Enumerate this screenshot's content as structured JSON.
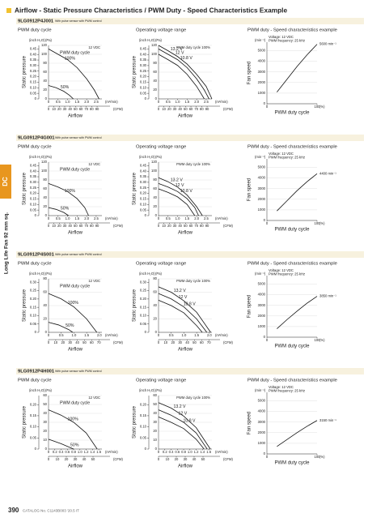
{
  "header": {
    "title": "Airflow - Static Pressure Characteristics / PWM Duty - Speed Characteristics Example"
  },
  "side": {
    "tab": "DC",
    "label": "Long Life Fan 92 mm sq."
  },
  "footer": {
    "page": "390",
    "catalog": "CATALOG No. C1143B003 '20.5 IT"
  },
  "common": {
    "note": "With pulse sensor with PWM control",
    "pq_title": "PWM duty cycle",
    "ov_title": "Operating voltage range",
    "pwm_title": "PWM duty - Speed characteristics example",
    "unit_inch": "(inch H₂O)",
    "unit_pa": "(Pa)",
    "static": "Static pressure",
    "airflow": "Airflow",
    "m3": "(m³/min)",
    "cfm": "(CFM)",
    "cond_pq": "12 VDC",
    "duty": "PWM duty cycle",
    "cond_ov": "PWM duty cycle 100%",
    "unit_rpm": "(min⁻¹)",
    "fan_speed": "Fan speed",
    "pct": "(%)",
    "voltage": "Voltage: 12 VDC",
    "freq": "PWM frequency: 25 kHz"
  },
  "pwm_axes": {
    "ylim": [
      0,
      5800
    ],
    "yticks": [
      0,
      1000,
      2000,
      3000,
      4000,
      5000
    ],
    "xlim": [
      0,
      100
    ],
    "xticks": [
      0,
      100
    ]
  },
  "sections": [
    {
      "model": "9LG0912P4J001",
      "pq": {
        "ylim": [
          0,
          120
        ],
        "yticks": [
          0,
          20,
          40,
          60,
          80,
          100,
          120
        ],
        "y2lim": [
          0,
          0.4817
        ],
        "y2ticks": [
          0,
          0.05,
          {
            "value": 0.1,
            "label": "0.10"
          },
          0.15,
          {
            "value": 0.2,
            "label": "0.20"
          },
          0.25,
          {
            "value": 0.3,
            "label": "0.30"
          },
          0.35,
          {
            "value": 0.4,
            "label": "0.40"
          },
          0.45
        ],
        "xlim": [
          0,
          2.8
        ],
        "xticks": [
          0,
          0.5,
          {
            "value": 1,
            "label": "1.0"
          },
          1.5,
          {
            "value": 2,
            "label": "2.0"
          },
          2.5
        ],
        "x2lim": [
          0,
          98.9
        ],
        "x2ticks": [
          0,
          10,
          20,
          30,
          40,
          50,
          60,
          70,
          80,
          90
        ],
        "series": [
          {
            "name": "100%",
            "x": [
              0,
              0.5,
              1.0,
              1.5,
              2.0,
              2.4,
              2.65
            ],
            "values": [
              112,
              100,
              88,
              70,
              45,
              20,
              0
            ]
          },
          {
            "name": "50%",
            "x": [
              0,
              0.4,
              0.8,
              1.1,
              1.3
            ],
            "values": [
              30,
              25,
              17,
              8,
              0
            ]
          }
        ]
      },
      "ov": {
        "series": [
          {
            "name": "13.2 V",
            "x": [
              0,
              0.5,
              1,
              1.5,
              2,
              2.5,
              2.8
            ],
            "values": [
              120,
              108,
              95,
              78,
              55,
              28,
              0
            ]
          },
          {
            "name": "12 V",
            "x": [
              0,
              0.5,
              1.0,
              1.5,
              2.0,
              2.4,
              2.65
            ],
            "values": [
              112,
              100,
              88,
              70,
              45,
              20,
              0
            ]
          },
          {
            "name": "10.8 V",
            "x": [
              0,
              0.5,
              1,
              1.5,
              2,
              2.4
            ],
            "values": [
              100,
              88,
              75,
              55,
              28,
              0
            ]
          }
        ]
      },
      "pwm": {
        "annotation": "5600 min⁻¹",
        "series": [
          {
            "x": [
              20,
              40,
              60,
              80,
              100
            ],
            "values": [
              1100,
              2300,
              3500,
              4600,
              5600
            ]
          }
        ]
      }
    },
    {
      "model": "9LG0912P4G001",
      "pq": {
        "ylim": [
          0,
          120
        ],
        "yticks": [
          0,
          20,
          40,
          60,
          80,
          100,
          120
        ],
        "y2lim": [
          0,
          0.4817
        ],
        "y2ticks": [
          0,
          0.05,
          {
            "value": 0.1,
            "label": "0.10"
          },
          0.15,
          {
            "value": 0.2,
            "label": "0.20"
          },
          0.25,
          {
            "value": 0.3,
            "label": "0.30"
          },
          0.35,
          {
            "value": 0.4,
            "label": "0.40"
          },
          0.45
        ],
        "xlim": [
          0,
          2.8
        ],
        "xticks": [
          0,
          0.5,
          {
            "value": 1,
            "label": "1.0"
          },
          1.5,
          {
            "value": 2,
            "label": "2.0"
          },
          2.5
        ],
        "x2lim": [
          0,
          98.9
        ],
        "x2ticks": [
          0,
          10,
          20,
          30,
          40,
          50,
          60,
          70,
          80,
          90
        ],
        "series": [
          {
            "name": "100%",
            "x": [
              0,
              0.5,
              1,
              1.5,
              1.9,
              2.1
            ],
            "values": [
              72,
              64,
              54,
              38,
              18,
              0
            ]
          },
          {
            "name": "50%",
            "x": [
              0,
              0.4,
              0.8,
              1.05
            ],
            "values": [
              18,
              14,
              7,
              0
            ]
          }
        ]
      },
      "ov": {
        "series": [
          {
            "name": "13.2 V",
            "x": [
              0,
              0.5,
              1,
              1.5,
              2,
              2.3
            ],
            "values": [
              85,
              76,
              64,
              46,
              20,
              0
            ]
          },
          {
            "name": "12 V",
            "x": [
              0,
              0.5,
              1,
              1.5,
              1.9,
              2.1
            ],
            "values": [
              72,
              64,
              54,
              38,
              18,
              0
            ]
          },
          {
            "name": "10.8 V",
            "x": [
              0,
              0.5,
              1,
              1.5,
              1.9
            ],
            "values": [
              60,
              52,
              42,
              25,
              0
            ]
          }
        ]
      },
      "pwm": {
        "annotation": "4400 min⁻¹",
        "series": [
          {
            "x": [
              20,
              40,
              60,
              80,
              100
            ],
            "values": [
              900,
              1850,
              2800,
              3650,
              4400
            ]
          }
        ]
      }
    },
    {
      "model": "9LG0912P4S001",
      "pq": {
        "ylim": [
          0,
          80
        ],
        "yticks": [
          0,
          20,
          40,
          60,
          80
        ],
        "y2lim": [
          0,
          0.321
        ],
        "y2ticks": [
          0,
          0.05,
          {
            "value": 0.1,
            "label": "0.10"
          },
          0.15,
          {
            "value": 0.2,
            "label": "0.20"
          },
          0.25,
          {
            "value": 0.3,
            "label": "0.30"
          }
        ],
        "xlim": [
          0,
          2.1
        ],
        "xticks": [
          0,
          0.5,
          {
            "value": 1,
            "label": "1.0"
          },
          1.5,
          {
            "value": 2,
            "label": "2.0"
          }
        ],
        "x2lim": [
          0,
          74.2
        ],
        "x2ticks": [
          0,
          10,
          20,
          30,
          40,
          50,
          60,
          70
        ],
        "series": [
          {
            "name": "100%",
            "x": [
              0,
              0.5,
              1,
              1.5,
              1.9
            ],
            "values": [
              58,
              50,
              38,
              20,
              0
            ]
          },
          {
            "name": "50%",
            "x": [
              0,
              0.4,
              0.8,
              0.95
            ],
            "values": [
              15,
              11,
              4,
              0
            ]
          }
        ]
      },
      "ov": {
        "series": [
          {
            "name": "13.2 V",
            "x": [
              0,
              0.5,
              1,
              1.5,
              2.05
            ],
            "values": [
              68,
              60,
              47,
              30,
              0
            ]
          },
          {
            "name": "12 V",
            "x": [
              0,
              0.5,
              1,
              1.5,
              1.9
            ],
            "values": [
              58,
              50,
              38,
              20,
              0
            ]
          },
          {
            "name": "10.8 V",
            "x": [
              0,
              0.5,
              1,
              1.5,
              1.72
            ],
            "values": [
              48,
              40,
              29,
              10,
              0
            ]
          }
        ]
      },
      "pwm": {
        "annotation": "3850 min⁻¹",
        "series": [
          {
            "x": [
              20,
              40,
              60,
              80,
              100
            ],
            "values": [
              800,
              1650,
              2450,
              3200,
              3850
            ]
          }
        ]
      }
    },
    {
      "model": "9LG0912P4H001",
      "pq": {
        "ylim": [
          0,
          60
        ],
        "yticks": [
          0,
          10,
          20,
          30,
          40,
          50,
          60
        ],
        "y2lim": [
          0,
          0.241
        ],
        "y2ticks": [
          0,
          0.05,
          {
            "value": 0.1,
            "label": "0.10"
          },
          0.15,
          {
            "value": 0.2,
            "label": "0.20"
          }
        ],
        "xlim": [
          0,
          1.7
        ],
        "xticks": [
          0,
          0.2,
          0.4,
          0.6,
          0.8,
          {
            "value": 1,
            "label": "1.0"
          },
          1.2,
          1.4,
          1.6
        ],
        "x2lim": [
          0,
          60
        ],
        "x2ticks": [
          0,
          10,
          20,
          30,
          40,
          50
        ],
        "series": [
          {
            "name": "100%",
            "x": [
              0,
              0.4,
              0.8,
              1.2,
              1.55
            ],
            "values": [
              44,
              38,
              30,
              18,
              0
            ]
          },
          {
            "name": "50%",
            "x": [
              0,
              0.4,
              0.8
            ],
            "values": [
              11,
              6,
              0
            ]
          }
        ]
      },
      "ov": {
        "series": [
          {
            "name": "13.2 V",
            "x": [
              0,
              0.4,
              0.8,
              1.2,
              1.65
            ],
            "values": [
              52,
              46,
              37,
              24,
              0
            ]
          },
          {
            "name": "12 V",
            "x": [
              0,
              0.4,
              0.8,
              1.2,
              1.55
            ],
            "values": [
              44,
              38,
              30,
              18,
              0
            ]
          },
          {
            "name": "10.8 V",
            "x": [
              0,
              0.4,
              0.8,
              1.2,
              1.45
            ],
            "values": [
              36,
              30,
              23,
              11,
              0
            ]
          }
        ]
      },
      "pwm": {
        "annotation": "3150 min⁻¹",
        "series": [
          {
            "x": [
              20,
              40,
              60,
              80,
              100
            ],
            "values": [
              700,
              1350,
              2000,
              2600,
              3150
            ]
          }
        ]
      }
    }
  ]
}
